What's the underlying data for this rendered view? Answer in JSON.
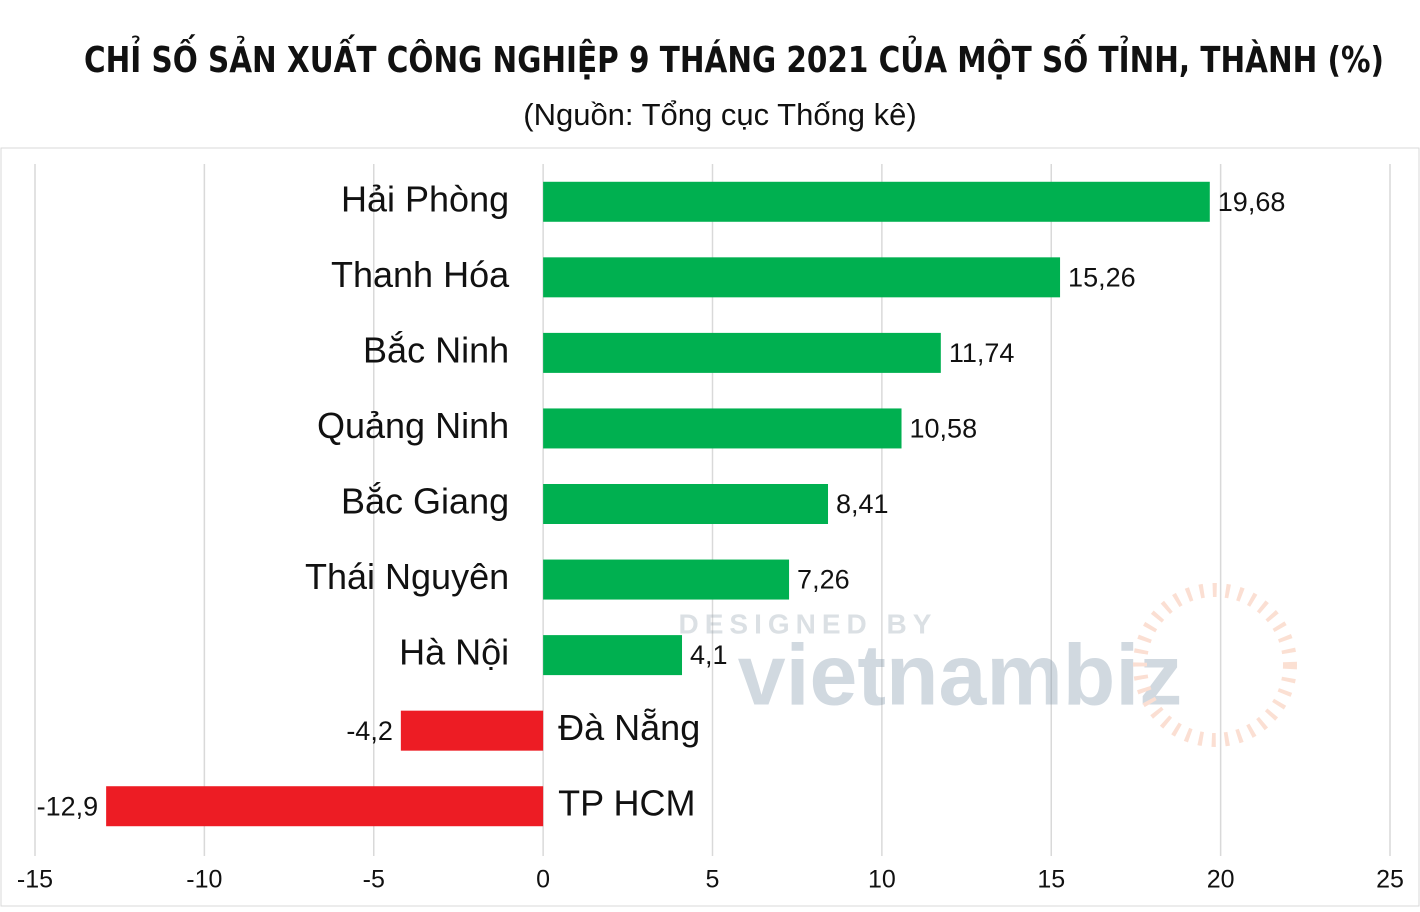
{
  "chart_data": {
    "type": "hbar",
    "title": "CHỈ SỐ SẢN XUẤT CÔNG NGHIỆP 9 THÁNG 2021 CỦA MỘT SỐ TỈNH, THÀNH (%)",
    "subtitle": "(Nguồn: Tổng cục Thống kê)",
    "categories": [
      "Hải Phòng",
      "Thanh Hóa",
      "Bắc Ninh",
      "Quảng Ninh",
      "Bắc Giang",
      "Thái Nguyên",
      "Hà Nội",
      "Đà Nẵng",
      "TP HCM"
    ],
    "values": [
      19.68,
      15.26,
      11.74,
      10.58,
      8.41,
      7.26,
      4.1,
      -4.2,
      -12.9
    ],
    "value_labels": [
      "19,68",
      "15,26",
      "11,74",
      "10,58",
      "8,41",
      "7,26",
      "4,1",
      "-4,2",
      "-12,9"
    ],
    "colors": [
      "#00b050",
      "#00b050",
      "#00b050",
      "#00b050",
      "#00b050",
      "#00b050",
      "#00b050",
      "#ed1c24",
      "#ed1c24"
    ],
    "xlim": [
      -15,
      25
    ],
    "xticks": [
      -15,
      -10,
      -5,
      0,
      5,
      10,
      15,
      20,
      25
    ],
    "grid": true,
    "watermark": {
      "line1": "DESIGNED BY",
      "line2": "vietnambiz"
    }
  }
}
